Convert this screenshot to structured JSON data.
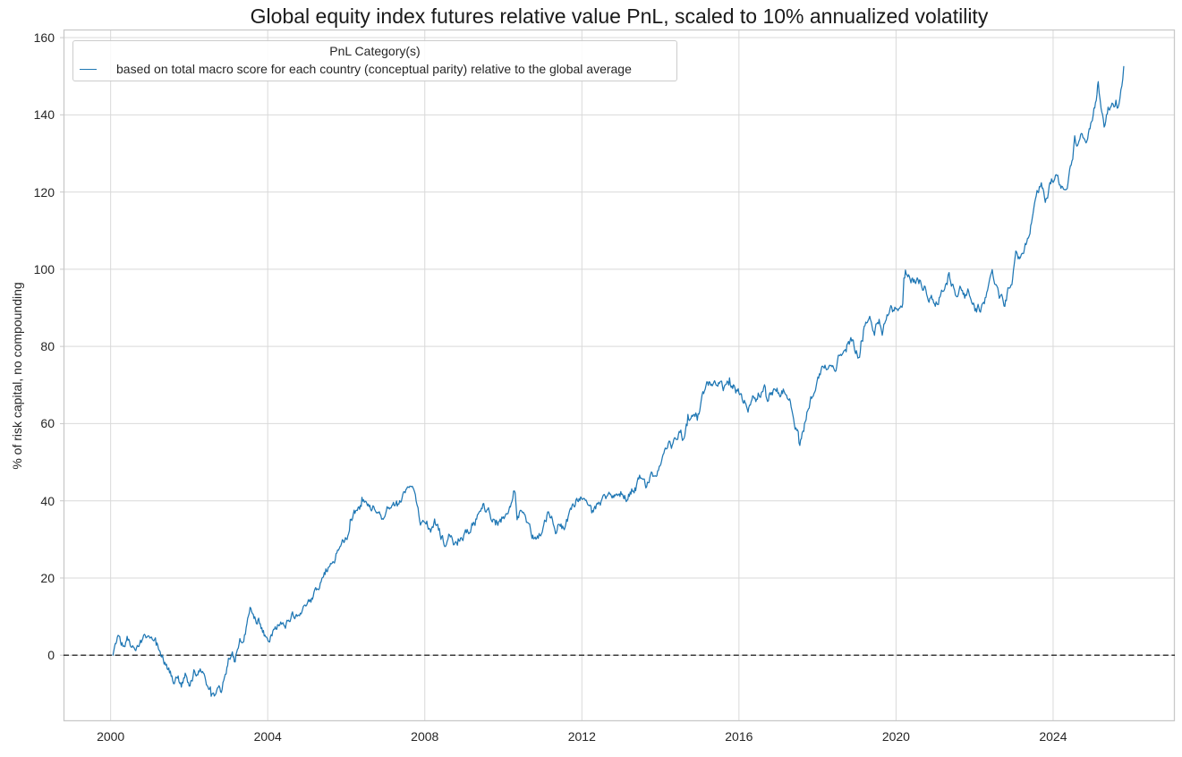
{
  "figure": {
    "title": "Global equity index futures relative value PnL, scaled to 10% annualized volatility"
  },
  "legend": {
    "title": "PnL Category(s)",
    "entries": [
      {
        "label": "based on total macro score for each country (conceptual parity) relative to the global average",
        "color": "#1f77b4"
      }
    ]
  },
  "colors": {
    "accent": "#1f77b4",
    "grid": "#d9d9d9",
    "frame": "#c9c9c9",
    "zero_line": "#000000",
    "text": "#262626",
    "background": "#ffffff"
  },
  "chart_data": {
    "type": "line",
    "title": "Global equity index futures relative value PnL, scaled to 10% annualized volatility",
    "xlabel": "",
    "ylabel": "% of risk capital, no compounding",
    "grid": true,
    "legend_position": "upper left",
    "x_ticks": [
      2000,
      2004,
      2008,
      2012,
      2016,
      2020,
      2024
    ],
    "y_ticks": [
      0,
      20,
      40,
      60,
      80,
      100,
      120,
      140,
      160
    ],
    "xlim": [
      1998.8,
      2027.1
    ],
    "ylim": [
      -17.1,
      162.1
    ],
    "zero_line": {
      "y": 0,
      "style": "dashed",
      "color": "#000000"
    },
    "series": [
      {
        "name": "based on total macro score for each country (conceptual parity) relative to the global average",
        "color": "#1f77b4",
        "points": [
          [
            2000.06,
            0
          ],
          [
            2000.1,
            2.5
          ],
          [
            2000.17,
            4.8
          ],
          [
            2000.25,
            3.2
          ],
          [
            2000.33,
            2.6
          ],
          [
            2000.42,
            4.0
          ],
          [
            2000.5,
            3.2
          ],
          [
            2000.6,
            3.9
          ],
          [
            2000.7,
            2.8
          ],
          [
            2000.8,
            3.4
          ],
          [
            2000.9,
            2.9
          ],
          [
            2001.0,
            3.6
          ],
          [
            2001.1,
            4.5
          ],
          [
            2001.2,
            2.5
          ],
          [
            2001.3,
            -0.5
          ],
          [
            2001.4,
            -3.0
          ],
          [
            2001.5,
            -4.5
          ],
          [
            2001.6,
            -6.5
          ],
          [
            2001.7,
            -5.2
          ],
          [
            2001.8,
            -7.2
          ],
          [
            2001.9,
            -4.5
          ],
          [
            2002.0,
            -6.8
          ],
          [
            2002.1,
            -5.0
          ],
          [
            2002.2,
            -6.6
          ],
          [
            2002.3,
            -4.6
          ],
          [
            2002.4,
            -5.8
          ],
          [
            2002.5,
            -7.5
          ],
          [
            2002.6,
            -9.2
          ],
          [
            2002.7,
            -7.8
          ],
          [
            2002.8,
            -8.8
          ],
          [
            2002.9,
            -6.0
          ],
          [
            2003.0,
            -1.5
          ],
          [
            2003.1,
            1.0
          ],
          [
            2003.15,
            -0.5
          ],
          [
            2003.25,
            2.0
          ],
          [
            2003.35,
            4.5
          ],
          [
            2003.45,
            7.5
          ],
          [
            2003.55,
            12.8
          ],
          [
            2003.65,
            10.0
          ],
          [
            2003.75,
            9.0
          ],
          [
            2003.85,
            7.0
          ],
          [
            2003.95,
            4.0
          ],
          [
            2004.05,
            3.5
          ],
          [
            2004.15,
            6.5
          ],
          [
            2004.25,
            7.8
          ],
          [
            2004.35,
            8.8
          ],
          [
            2004.45,
            8.2
          ],
          [
            2004.55,
            9.5
          ],
          [
            2004.65,
            10.5
          ],
          [
            2004.75,
            9.8
          ],
          [
            2004.85,
            11.5
          ],
          [
            2004.95,
            12.0
          ],
          [
            2005.1,
            14.5
          ],
          [
            2005.2,
            16.5
          ],
          [
            2005.3,
            17.5
          ],
          [
            2005.4,
            19.5
          ],
          [
            2005.5,
            22.0
          ],
          [
            2005.6,
            24.0
          ],
          [
            2005.7,
            26.0
          ],
          [
            2005.8,
            28.0
          ],
          [
            2005.9,
            30.0
          ],
          [
            2006.0,
            31.5
          ],
          [
            2006.1,
            33.5
          ],
          [
            2006.2,
            35.5
          ],
          [
            2006.3,
            37.0
          ],
          [
            2006.4,
            38.0
          ],
          [
            2006.5,
            39.0
          ],
          [
            2006.6,
            37.5
          ],
          [
            2006.7,
            38.5
          ],
          [
            2006.8,
            37.0
          ],
          [
            2006.9,
            36.5
          ],
          [
            2007.0,
            35.5
          ],
          [
            2007.1,
            38.0
          ],
          [
            2007.2,
            40.0
          ],
          [
            2007.3,
            39.0
          ],
          [
            2007.4,
            40.5
          ],
          [
            2007.5,
            42.5
          ],
          [
            2007.6,
            44.5
          ],
          [
            2007.7,
            43.0
          ],
          [
            2007.78,
            40.0
          ],
          [
            2007.85,
            35.5
          ],
          [
            2007.95,
            33.5
          ],
          [
            2008.05,
            35.5
          ],
          [
            2008.15,
            33.0
          ],
          [
            2008.25,
            34.0
          ],
          [
            2008.35,
            31.5
          ],
          [
            2008.45,
            30.0
          ],
          [
            2008.55,
            28.8
          ],
          [
            2008.65,
            31.0
          ],
          [
            2008.75,
            29.5
          ],
          [
            2008.85,
            31.5
          ],
          [
            2008.95,
            30.5
          ],
          [
            2009.1,
            32.5
          ],
          [
            2009.2,
            34.0
          ],
          [
            2009.3,
            35.5
          ],
          [
            2009.4,
            37.0
          ],
          [
            2009.5,
            39.0
          ],
          [
            2009.6,
            37.5
          ],
          [
            2009.7,
            35.0
          ],
          [
            2009.8,
            33.5
          ],
          [
            2009.9,
            35.0
          ],
          [
            2010.0,
            36.0
          ],
          [
            2010.1,
            38.0
          ],
          [
            2010.2,
            40.0
          ],
          [
            2010.3,
            42.0
          ],
          [
            2010.35,
            36.0
          ],
          [
            2010.45,
            38.5
          ],
          [
            2010.55,
            35.0
          ],
          [
            2010.65,
            32.0
          ],
          [
            2010.75,
            30.5
          ],
          [
            2010.85,
            29.5
          ],
          [
            2010.95,
            31.0
          ],
          [
            2011.05,
            34.0
          ],
          [
            2011.15,
            37.5
          ],
          [
            2011.25,
            35.0
          ],
          [
            2011.35,
            32.5
          ],
          [
            2011.45,
            34.0
          ],
          [
            2011.55,
            33.0
          ],
          [
            2011.65,
            35.5
          ],
          [
            2011.75,
            38.5
          ],
          [
            2011.85,
            40.5
          ],
          [
            2011.95,
            41.5
          ],
          [
            2012.05,
            41.0
          ],
          [
            2012.15,
            39.5
          ],
          [
            2012.25,
            36.5
          ],
          [
            2012.35,
            38.5
          ],
          [
            2012.45,
            40.0
          ],
          [
            2012.55,
            40.5
          ],
          [
            2012.65,
            41.5
          ],
          [
            2012.75,
            40.5
          ],
          [
            2012.85,
            41.5
          ],
          [
            2012.95,
            42.5
          ],
          [
            2013.05,
            43.0
          ],
          [
            2013.15,
            41.5
          ],
          [
            2013.25,
            42.5
          ],
          [
            2013.35,
            43.5
          ],
          [
            2013.45,
            44.5
          ],
          [
            2013.55,
            46.0
          ],
          [
            2013.65,
            44.5
          ],
          [
            2013.75,
            45.5
          ],
          [
            2013.85,
            46.5
          ],
          [
            2013.95,
            47.5
          ],
          [
            2014.05,
            51.0
          ],
          [
            2014.2,
            56.0
          ],
          [
            2014.3,
            54.0
          ],
          [
            2014.4,
            56.5
          ],
          [
            2014.5,
            57.5
          ],
          [
            2014.6,
            56.0
          ],
          [
            2014.7,
            59.5
          ],
          [
            2014.8,
            61.0
          ],
          [
            2014.9,
            62.5
          ],
          [
            2015.0,
            64.5
          ],
          [
            2015.1,
            67.5
          ],
          [
            2015.2,
            69.0
          ],
          [
            2015.3,
            70.5
          ],
          [
            2015.4,
            69.5
          ],
          [
            2015.5,
            70.0
          ],
          [
            2015.6,
            68.5
          ],
          [
            2015.7,
            69.5
          ],
          [
            2015.8,
            68.0
          ],
          [
            2015.9,
            69.0
          ],
          [
            2016.0,
            67.5
          ],
          [
            2016.1,
            66.0
          ],
          [
            2016.25,
            64.5
          ],
          [
            2016.35,
            66.5
          ],
          [
            2016.45,
            65.5
          ],
          [
            2016.55,
            67.0
          ],
          [
            2016.65,
            68.5
          ],
          [
            2016.75,
            67.5
          ],
          [
            2016.85,
            68.5
          ],
          [
            2016.95,
            69.0
          ],
          [
            2017.05,
            68.0
          ],
          [
            2017.15,
            68.5
          ],
          [
            2017.25,
            66.5
          ],
          [
            2017.35,
            63.5
          ],
          [
            2017.45,
            59.5
          ],
          [
            2017.55,
            55.8
          ],
          [
            2017.65,
            60.0
          ],
          [
            2017.75,
            64.0
          ],
          [
            2017.85,
            66.5
          ],
          [
            2017.95,
            69.0
          ],
          [
            2018.05,
            71.5
          ],
          [
            2018.15,
            75.5
          ],
          [
            2018.25,
            75.0
          ],
          [
            2018.35,
            77.5
          ],
          [
            2018.45,
            76.5
          ],
          [
            2018.55,
            78.5
          ],
          [
            2018.65,
            79.5
          ],
          [
            2018.75,
            80.5
          ],
          [
            2018.85,
            81.0
          ],
          [
            2018.95,
            79.5
          ],
          [
            2019.05,
            78.5
          ],
          [
            2019.15,
            81.5
          ],
          [
            2019.25,
            85.0
          ],
          [
            2019.35,
            86.5
          ],
          [
            2019.45,
            84.5
          ],
          [
            2019.55,
            86.0
          ],
          [
            2019.65,
            84.0
          ],
          [
            2019.75,
            88.5
          ],
          [
            2019.85,
            90.5
          ],
          [
            2019.95,
            89.5
          ],
          [
            2020.05,
            90.5
          ],
          [
            2020.12,
            89.5
          ],
          [
            2020.17,
            91.0
          ],
          [
            2020.2,
            97.0
          ],
          [
            2020.3,
            97.0
          ],
          [
            2020.4,
            97.5
          ],
          [
            2020.5,
            97.0
          ],
          [
            2020.6,
            96.5
          ],
          [
            2020.7,
            95.5
          ],
          [
            2020.8,
            94.0
          ],
          [
            2020.9,
            92.5
          ],
          [
            2021.0,
            92.0
          ],
          [
            2021.1,
            93.5
          ],
          [
            2021.2,
            94.5
          ],
          [
            2021.3,
            96.0
          ],
          [
            2021.35,
            99.0
          ],
          [
            2021.45,
            95.5
          ],
          [
            2021.55,
            94.0
          ],
          [
            2021.65,
            95.5
          ],
          [
            2021.75,
            93.5
          ],
          [
            2021.85,
            94.5
          ],
          [
            2021.95,
            92.5
          ],
          [
            2022.05,
            91.0
          ],
          [
            2022.15,
            90.0
          ],
          [
            2022.25,
            91.5
          ],
          [
            2022.35,
            94.0
          ],
          [
            2022.45,
            97.5
          ],
          [
            2022.55,
            97.0
          ],
          [
            2022.65,
            93.0
          ],
          [
            2022.75,
            91.5
          ],
          [
            2022.85,
            94.5
          ],
          [
            2022.95,
            98.0
          ],
          [
            2023.05,
            103.0
          ],
          [
            2023.15,
            104.5
          ],
          [
            2023.25,
            104.0
          ],
          [
            2023.35,
            108.0
          ],
          [
            2023.45,
            113.0
          ],
          [
            2023.55,
            117.0
          ],
          [
            2023.65,
            121.0
          ],
          [
            2023.7,
            123.0
          ],
          [
            2023.8,
            118.5
          ],
          [
            2023.9,
            121.5
          ],
          [
            2024.0,
            123.5
          ],
          [
            2024.1,
            124.5
          ],
          [
            2024.2,
            122.0
          ],
          [
            2024.3,
            121.5
          ],
          [
            2024.4,
            124.0
          ],
          [
            2024.5,
            128.0
          ],
          [
            2024.55,
            133.5
          ],
          [
            2024.6,
            131.5
          ],
          [
            2024.7,
            136.5
          ],
          [
            2024.8,
            132.0
          ],
          [
            2024.9,
            134.5
          ],
          [
            2025.0,
            138.5
          ],
          [
            2025.1,
            144.0
          ],
          [
            2025.15,
            149.5
          ],
          [
            2025.22,
            143.0
          ],
          [
            2025.3,
            138.0
          ],
          [
            2025.4,
            141.5
          ],
          [
            2025.5,
            142.5
          ],
          [
            2025.55,
            140.5
          ],
          [
            2025.6,
            143.0
          ],
          [
            2025.65,
            142.0
          ],
          [
            2025.7,
            144.0
          ],
          [
            2025.75,
            147.0
          ],
          [
            2025.8,
            152.5
          ]
        ]
      }
    ]
  }
}
